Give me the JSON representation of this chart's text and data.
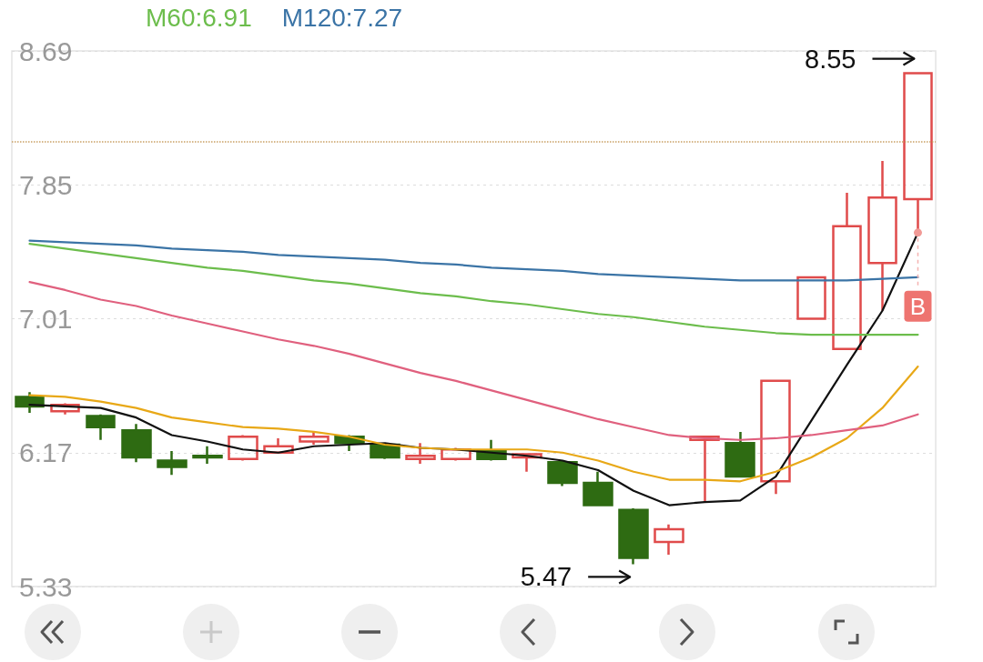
{
  "chart_data": {
    "type": "candlestick",
    "categories": [
      null,
      null,
      null,
      null,
      null,
      null,
      null,
      null,
      null,
      null,
      null,
      null,
      null,
      null,
      null,
      null,
      null,
      null,
      null,
      null,
      null,
      null,
      null,
      null,
      null,
      null
    ],
    "ohlc": [
      [
        6.52,
        6.55,
        6.42,
        6.46
      ],
      [
        6.43,
        6.48,
        6.41,
        6.47
      ],
      [
        6.4,
        6.41,
        6.25,
        6.33
      ],
      [
        6.31,
        6.35,
        6.11,
        6.14
      ],
      [
        6.12,
        6.18,
        6.03,
        6.08
      ],
      [
        6.15,
        6.21,
        6.1,
        6.14
      ],
      [
        6.13,
        6.28,
        6.12,
        6.27
      ],
      [
        6.17,
        6.26,
        6.17,
        6.21
      ],
      [
        6.24,
        6.3,
        6.22,
        6.27
      ],
      [
        6.27,
        6.28,
        6.18,
        6.23
      ],
      [
        6.22,
        6.22,
        6.13,
        6.14
      ],
      [
        6.13,
        6.23,
        6.1,
        6.15
      ],
      [
        6.13,
        6.2,
        6.12,
        6.19
      ],
      [
        6.18,
        6.25,
        6.12,
        6.13
      ],
      [
        6.14,
        6.16,
        6.05,
        6.16
      ],
      [
        6.11,
        6.11,
        5.96,
        5.98
      ],
      [
        5.98,
        6.05,
        5.84,
        5.84
      ],
      [
        5.81,
        5.82,
        5.47,
        5.51
      ],
      [
        5.61,
        5.72,
        5.53,
        5.69
      ],
      [
        6.25,
        6.27,
        5.86,
        6.27
      ],
      [
        6.23,
        6.3,
        6.02,
        6.02
      ],
      [
        5.99,
        6.62,
        5.91,
        6.62
      ],
      [
        7.01,
        7.27,
        7.01,
        7.27
      ],
      [
        6.82,
        7.8,
        6.82,
        7.59
      ],
      [
        7.36,
        8.0,
        7.06,
        7.77
      ],
      [
        7.76,
        8.55,
        7.55,
        8.55
      ]
    ],
    "colors": [
      "#2e6b12",
      "#e04b4b",
      "#2e6b12",
      "#2e6b12",
      "#2e6b12",
      "#2e6b12",
      "#e04b4b",
      "#e04b4b",
      "#e04b4b",
      "#2e6b12",
      "#2e6b12",
      "#e04b4b",
      "#e04b4b",
      "#2e6b12",
      "#e04b4b",
      "#2e6b12",
      "#2e6b12",
      "#2e6b12",
      "#e04b4b",
      "#e04b4b",
      "#2e6b12",
      "#e04b4b",
      "#e04b4b",
      "#e04b4b",
      "#e04b4b",
      "#e04b4b"
    ],
    "series": [
      {
        "type": "line",
        "color": "#111111",
        "values": [
          6.47,
          6.46,
          6.45,
          6.39,
          6.28,
          6.24,
          6.19,
          6.17,
          6.21,
          6.22,
          6.23,
          6.2,
          6.19,
          6.17,
          6.15,
          6.12,
          6.06,
          5.93,
          5.84,
          5.86,
          5.87,
          6.02,
          6.37,
          6.72,
          7.06,
          7.55
        ]
      },
      {
        "type": "line",
        "color": "#e8a817",
        "values": [
          6.53,
          6.52,
          6.49,
          6.45,
          6.39,
          6.36,
          6.33,
          6.32,
          6.3,
          6.27,
          6.22,
          6.2,
          6.19,
          6.19,
          6.19,
          6.17,
          6.12,
          6.05,
          6.0,
          6.0,
          5.99,
          6.05,
          6.14,
          6.26,
          6.45,
          6.71
        ]
      },
      {
        "type": "line",
        "color": "#e0607e",
        "values": [
          7.24,
          7.19,
          7.13,
          7.09,
          7.03,
          6.98,
          6.93,
          6.88,
          6.84,
          6.79,
          6.73,
          6.67,
          6.62,
          6.56,
          6.5,
          6.44,
          6.38,
          6.33,
          6.28,
          6.26,
          6.25,
          6.26,
          6.28,
          6.31,
          6.34,
          6.41
        ]
      },
      {
        "type": "line",
        "name": "M60:6.91",
        "color": "#6cbd4c",
        "values": [
          7.48,
          7.45,
          7.42,
          7.39,
          7.36,
          7.33,
          7.31,
          7.28,
          7.25,
          7.23,
          7.2,
          7.17,
          7.15,
          7.12,
          7.1,
          7.07,
          7.04,
          7.02,
          6.99,
          6.96,
          6.94,
          6.92,
          6.91,
          6.91,
          6.91,
          6.91
        ]
      },
      {
        "type": "line",
        "name": "M120:7.27",
        "color": "#3b74a6",
        "values": [
          7.5,
          7.49,
          7.48,
          7.47,
          7.45,
          7.44,
          7.43,
          7.41,
          7.4,
          7.39,
          7.38,
          7.36,
          7.35,
          7.33,
          7.32,
          7.31,
          7.29,
          7.28,
          7.27,
          7.26,
          7.25,
          7.25,
          7.25,
          7.25,
          7.26,
          7.27
        ]
      }
    ],
    "ylim": [
      5.33,
      8.69
    ],
    "yticks": [
      5.33,
      6.17,
      7.01,
      7.85,
      8.69
    ],
    "grid": "y",
    "legend": "top left",
    "tick_labels": "y",
    "ref_lines": [
      {
        "axis": "y",
        "value": 8.12,
        "color": "#c9a064",
        "line_style": "dotted"
      }
    ],
    "annotations": [
      "8.55",
      "5.47",
      {
        "text": "B",
        "y": 7.55
      }
    ]
  }
}
